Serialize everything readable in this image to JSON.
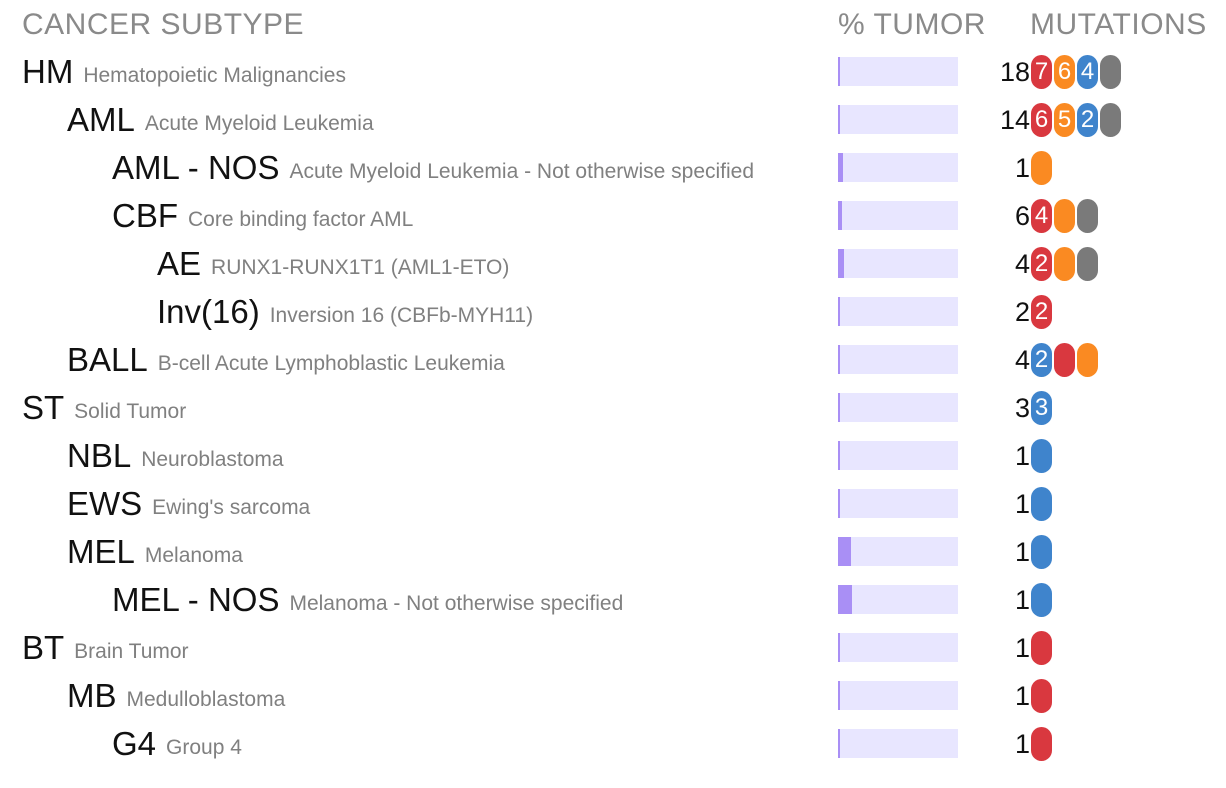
{
  "headers": {
    "subtype": "CANCER SUBTYPE",
    "tumor": "% TUMOR",
    "mutations": "MUTATIONS"
  },
  "colors": {
    "red": "#d9383f",
    "orange": "#fa8a22",
    "blue": "#3f84cc",
    "gray": "#7a7a7a",
    "bar_bg": "#e8e6ff",
    "bar_fill": "#a98ff5"
  },
  "rows": [
    {
      "abbr": "HM",
      "full": "Hematopoietic Malignancies",
      "level": 0,
      "tumor_fraction": 0.01,
      "count": "18",
      "pills": [
        {
          "color": "red",
          "label": "7"
        },
        {
          "color": "orange",
          "label": "6"
        },
        {
          "color": "blue",
          "label": "4"
        },
        {
          "color": "gray",
          "label": ""
        }
      ]
    },
    {
      "abbr": "AML",
      "full": "Acute Myeloid Leukemia",
      "level": 1,
      "tumor_fraction": 0.02,
      "count": "14",
      "pills": [
        {
          "color": "red",
          "label": "6"
        },
        {
          "color": "orange",
          "label": "5"
        },
        {
          "color": "blue",
          "label": "2"
        },
        {
          "color": "gray",
          "label": ""
        }
      ]
    },
    {
      "abbr": "AML - NOS",
      "full": "Acute Myeloid Leukemia - Not otherwise specified",
      "level": 2,
      "tumor_fraction": 0.04,
      "count": "1",
      "pills": [
        {
          "color": "orange",
          "label": ""
        }
      ]
    },
    {
      "abbr": "CBF",
      "full": "Core binding factor AML",
      "level": 2,
      "tumor_fraction": 0.03,
      "count": "6",
      "pills": [
        {
          "color": "red",
          "label": "4"
        },
        {
          "color": "orange",
          "label": ""
        },
        {
          "color": "gray",
          "label": ""
        }
      ]
    },
    {
      "abbr": "AE",
      "full": "RUNX1-RUNX1T1 (AML1-ETO)",
      "level": 3,
      "tumor_fraction": 0.05,
      "count": "4",
      "pills": [
        {
          "color": "red",
          "label": "2"
        },
        {
          "color": "orange",
          "label": ""
        },
        {
          "color": "gray",
          "label": ""
        }
      ]
    },
    {
      "abbr": "Inv(16)",
      "full": "Inversion 16 (CBFb-MYH11)",
      "level": 3,
      "tumor_fraction": 0.02,
      "count": "2",
      "pills": [
        {
          "color": "red",
          "label": "2"
        }
      ]
    },
    {
      "abbr": "BALL",
      "full": "B-cell Acute Lymphoblastic Leukemia",
      "level": 1,
      "tumor_fraction": 0.01,
      "count": "4",
      "pills": [
        {
          "color": "blue",
          "label": "2"
        },
        {
          "color": "red",
          "label": ""
        },
        {
          "color": "orange",
          "label": ""
        }
      ]
    },
    {
      "abbr": "ST",
      "full": "Solid Tumor",
      "level": 0,
      "tumor_fraction": 0.005,
      "count": "3",
      "pills": [
        {
          "color": "blue",
          "label": "3"
        }
      ]
    },
    {
      "abbr": "NBL",
      "full": "Neuroblastoma",
      "level": 1,
      "tumor_fraction": 0.005,
      "count": "1",
      "pills": [
        {
          "color": "blue",
          "label": ""
        }
      ]
    },
    {
      "abbr": "EWS",
      "full": "Ewing's sarcoma",
      "level": 1,
      "tumor_fraction": 0.01,
      "count": "1",
      "pills": [
        {
          "color": "blue",
          "label": ""
        }
      ]
    },
    {
      "abbr": "MEL",
      "full": "Melanoma",
      "level": 1,
      "tumor_fraction": 0.11,
      "count": "1",
      "pills": [
        {
          "color": "blue",
          "label": ""
        }
      ]
    },
    {
      "abbr": "MEL - NOS",
      "full": "Melanoma - Not otherwise specified",
      "level": 2,
      "tumor_fraction": 0.12,
      "count": "1",
      "pills": [
        {
          "color": "blue",
          "label": ""
        }
      ]
    },
    {
      "abbr": "BT",
      "full": "Brain Tumor",
      "level": 0,
      "tumor_fraction": 0.005,
      "count": "1",
      "pills": [
        {
          "color": "red",
          "label": ""
        }
      ]
    },
    {
      "abbr": "MB",
      "full": "Medulloblastoma",
      "level": 1,
      "tumor_fraction": 0.005,
      "count": "1",
      "pills": [
        {
          "color": "red",
          "label": ""
        }
      ]
    },
    {
      "abbr": "G4",
      "full": "Group 4",
      "level": 2,
      "tumor_fraction": 0.005,
      "count": "1",
      "pills": [
        {
          "color": "red",
          "label": ""
        }
      ]
    }
  ],
  "chart_data": {
    "type": "table",
    "columns": [
      "CANCER SUBTYPE",
      "% TUMOR",
      "MUTATIONS"
    ],
    "rows": [
      {
        "subtype": "HM",
        "description": "Hematopoietic Malignancies",
        "mutations": 18,
        "segments": [
          7,
          6,
          4
        ]
      },
      {
        "subtype": "AML",
        "description": "Acute Myeloid Leukemia",
        "mutations": 14,
        "segments": [
          6,
          5,
          2
        ]
      },
      {
        "subtype": "AML - NOS",
        "description": "Acute Myeloid Leukemia - Not otherwise specified",
        "mutations": 1
      },
      {
        "subtype": "CBF",
        "description": "Core binding factor AML",
        "mutations": 6,
        "segments": [
          4
        ]
      },
      {
        "subtype": "AE",
        "description": "RUNX1-RUNX1T1 (AML1-ETO)",
        "mutations": 4,
        "segments": [
          2
        ]
      },
      {
        "subtype": "Inv(16)",
        "description": "Inversion 16 (CBFb-MYH11)",
        "mutations": 2,
        "segments": [
          2
        ]
      },
      {
        "subtype": "BALL",
        "description": "B-cell Acute Lymphoblastic Leukemia",
        "mutations": 4,
        "segments": [
          2
        ]
      },
      {
        "subtype": "ST",
        "description": "Solid Tumor",
        "mutations": 3,
        "segments": [
          3
        ]
      },
      {
        "subtype": "NBL",
        "description": "Neuroblastoma",
        "mutations": 1
      },
      {
        "subtype": "EWS",
        "description": "Ewing's sarcoma",
        "mutations": 1
      },
      {
        "subtype": "MEL",
        "description": "Melanoma",
        "mutations": 1
      },
      {
        "subtype": "MEL - NOS",
        "description": "Melanoma - Not otherwise specified",
        "mutations": 1
      },
      {
        "subtype": "BT",
        "description": "Brain Tumor",
        "mutations": 1
      },
      {
        "subtype": "MB",
        "description": "Medulloblastoma",
        "mutations": 1
      },
      {
        "subtype": "G4",
        "description": "Group 4",
        "mutations": 1
      }
    ]
  }
}
